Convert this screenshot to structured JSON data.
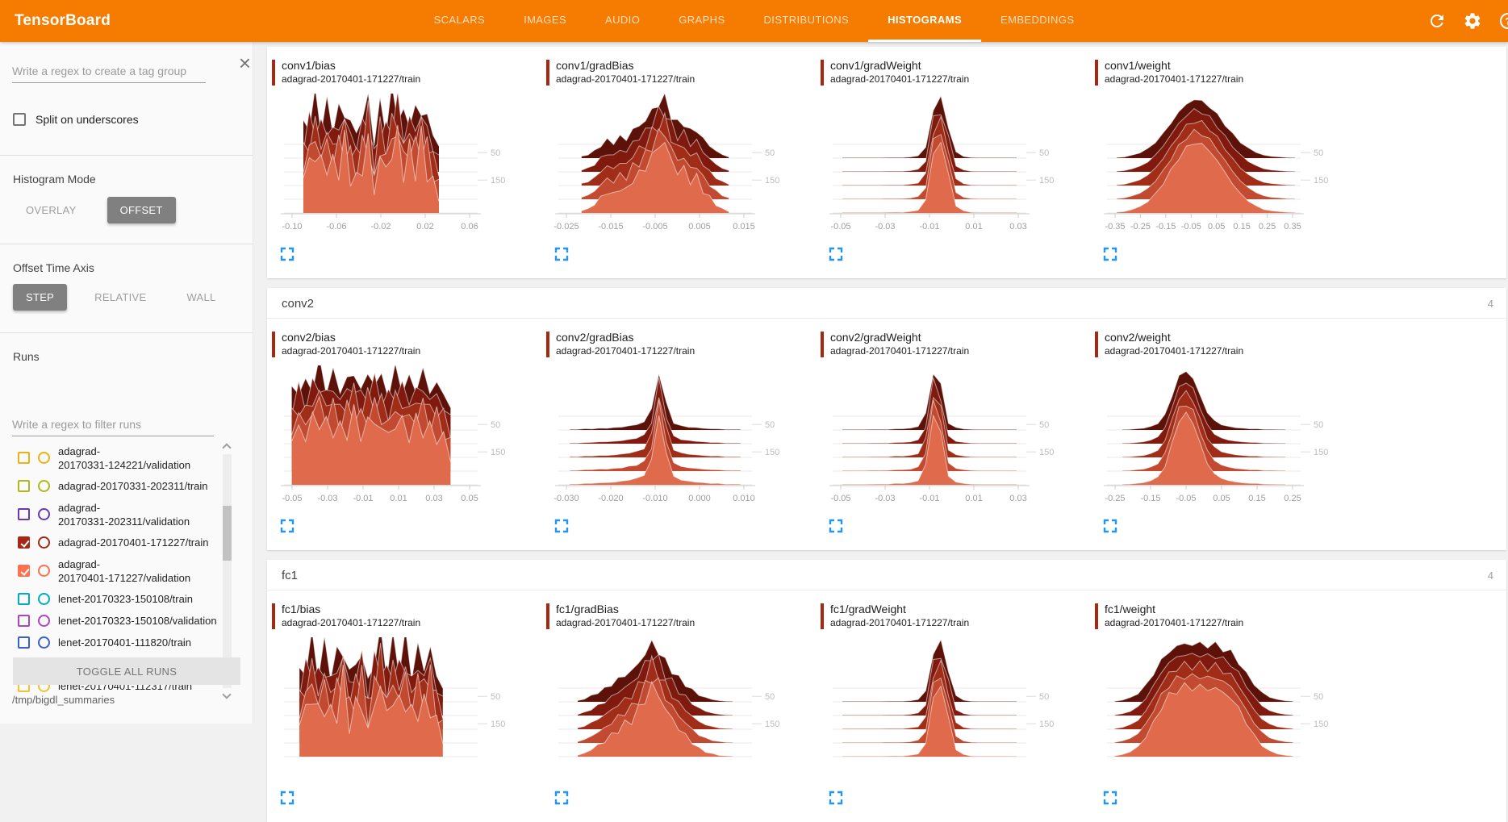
{
  "app": {
    "title": "TensorBoard",
    "accent_color": "#f57c00"
  },
  "nav": {
    "tabs": [
      {
        "label": "SCALARS",
        "active": false
      },
      {
        "label": "IMAGES",
        "active": false
      },
      {
        "label": "AUDIO",
        "active": false
      },
      {
        "label": "GRAPHS",
        "active": false
      },
      {
        "label": "DISTRIBUTIONS",
        "active": false
      },
      {
        "label": "HISTOGRAMS",
        "active": true
      },
      {
        "label": "EMBEDDINGS",
        "active": false
      }
    ]
  },
  "toolbar": {
    "icons": [
      "refresh-icon",
      "settings-icon",
      "help-icon"
    ]
  },
  "sidebar": {
    "tag_filter_placeholder": "Write a regex to create a tag group",
    "split_label": "Split on underscores",
    "histogram_mode_label": "Histogram Mode",
    "histogram_modes": [
      {
        "label": "OVERLAY",
        "selected": false
      },
      {
        "label": "OFFSET",
        "selected": true
      }
    ],
    "offset_axis_label": "Offset Time Axis",
    "offset_axis_modes": [
      {
        "label": "STEP",
        "selected": true
      },
      {
        "label": "RELATIVE",
        "selected": false
      },
      {
        "label": "WALL",
        "selected": false
      }
    ],
    "runs_label": "Runs",
    "runs_filter_placeholder": "Write a regex to filter runs",
    "runs": [
      {
        "label": "adagrad-20170331-124221/validation",
        "lines": [
          "adagrad-",
          "20170331-124221/validation"
        ],
        "color": "#edb211",
        "checked": false
      },
      {
        "label": "adagrad-20170331-202311/train",
        "color": "#aeb81c",
        "checked": false
      },
      {
        "label": "adagrad-20170331-202311/validation",
        "lines": [
          "adagrad-",
          "20170331-202311/validation"
        ],
        "color": "#6639b7",
        "checked": false
      },
      {
        "label": "adagrad-20170401-171227/train",
        "color": "#a52714",
        "checked": true
      },
      {
        "label": "adagrad-20170401-171227/validation",
        "lines": [
          "adagrad-",
          "20170401-171227/validation"
        ],
        "color": "#ff7050",
        "checked": true
      },
      {
        "label": "lenet-20170323-150108/train",
        "color": "#00acc1",
        "checked": false
      },
      {
        "label": "lenet-20170323-150108/validation",
        "color": "#ab47bc",
        "checked": false
      },
      {
        "label": "lenet-20170401-111820/train",
        "color": "#3b5fce",
        "checked": false
      },
      {
        "label": "lenet-20170401-111820/validation",
        "color": "#0b8043",
        "checked": false
      },
      {
        "label": "lenet-20170401-112317/train",
        "color": "#f1c232",
        "checked": false
      }
    ],
    "toggle_all_label": "TOGGLE ALL RUNS",
    "log_dir": "/tmp/bigdl_summaries"
  },
  "main": {
    "sections": [
      {
        "name": "",
        "count": "",
        "charts": [
          0,
          1,
          2,
          3
        ]
      },
      {
        "name": "conv2",
        "count": "4",
        "charts": [
          4,
          5,
          6,
          7
        ]
      },
      {
        "name": "fc1",
        "count": "4",
        "charts": [
          8,
          9,
          10,
          11
        ]
      }
    ]
  },
  "chart_meta": {
    "type": "ridgeline-histogram-offset",
    "layers": 5,
    "palette_front_to_back": [
      "#e06a4c",
      "#c24a30",
      "#a02d18",
      "#801a0e",
      "#5c1208"
    ],
    "top_stroke": "rgba(255,255,255,0.55)",
    "accent_color": "#a52714",
    "expand_icon_color": "#2196f3"
  },
  "chart_data": [
    {
      "title": "conv1/bias",
      "run": "adagrad-20170401-171227/train",
      "type": "ridgeline-histogram",
      "x_ticks": [
        "-0.10",
        "-0.06",
        "-0.02",
        "0.02",
        "0.06"
      ],
      "y_step_labels": [
        {
          "text": "50",
          "offset_steps": 4.4
        },
        {
          "text": "150",
          "offset_steps": 2.4
        }
      ],
      "span": [
        0.1,
        0.8
      ],
      "rough": 0.5,
      "axis": true,
      "profile": [
        0.5,
        0.72,
        0.88,
        0.66,
        0.78,
        0.62,
        0.74,
        0.86,
        0.58,
        0.44,
        0.7,
        0.96,
        0.28,
        0.8,
        0.6,
        0.92,
        1.0,
        0.62,
        0.78,
        0.72,
        0.9,
        0.68,
        0.4,
        0.22
      ]
    },
    {
      "title": "conv1/gradBias",
      "run": "adagrad-20170401-171227/train",
      "type": "ridgeline-histogram",
      "x_ticks": [
        "-0.025",
        "-0.015",
        "-0.005",
        "0.005",
        "0.015"
      ],
      "y_step_labels": [
        {
          "text": "50",
          "offset_steps": 4.4
        },
        {
          "text": "150",
          "offset_steps": 2.4
        }
      ],
      "span": [
        0.12,
        0.88
      ],
      "rough": 0.18,
      "axis": true,
      "profile": [
        0.03,
        0.06,
        0.12,
        0.22,
        0.3,
        0.26,
        0.36,
        0.32,
        0.48,
        0.55,
        0.65,
        0.8,
        0.95,
        1.0,
        0.75,
        0.58,
        0.62,
        0.45,
        0.5,
        0.32,
        0.22,
        0.12,
        0.06,
        0.02
      ]
    },
    {
      "title": "conv1/gradWeight",
      "run": "adagrad-20170401-171227/train",
      "type": "ridgeline-histogram",
      "x_ticks": [
        "-0.05",
        "-0.03",
        "-0.01",
        "0.01",
        "0.03"
      ],
      "y_step_labels": [
        {
          "text": "50",
          "offset_steps": 4.4
        },
        {
          "text": "150",
          "offset_steps": 2.4
        }
      ],
      "span": [
        0.05,
        0.95
      ],
      "rough": 0.1,
      "axis": true,
      "profile": [
        0,
        0,
        0,
        0,
        0,
        0,
        0.01,
        0.01,
        0.01,
        0.02,
        0.04,
        0.18,
        0.85,
        1.0,
        0.55,
        0.1,
        0.03,
        0.01,
        0,
        0,
        0,
        0,
        0,
        0
      ]
    },
    {
      "title": "conv1/weight",
      "run": "adagrad-20170401-171227/train",
      "type": "ridgeline-histogram",
      "x_ticks": [
        "-0.35",
        "-0.25",
        "-0.15",
        "-0.05",
        "0.05",
        "0.15",
        "0.25",
        "0.35"
      ],
      "y_step_labels": [
        {
          "text": "50",
          "offset_steps": 4.4
        },
        {
          "text": "150",
          "offset_steps": 2.4
        }
      ],
      "span": [
        0.05,
        0.97
      ],
      "rough": 0.05,
      "axis": true,
      "profile": [
        0.01,
        0.02,
        0.05,
        0.09,
        0.16,
        0.27,
        0.42,
        0.6,
        0.78,
        0.92,
        1.0,
        0.97,
        0.88,
        0.74,
        0.57,
        0.41,
        0.27,
        0.17,
        0.1,
        0.05,
        0.03,
        0.02,
        0.01,
        0
      ]
    },
    {
      "title": "conv2/bias",
      "run": "adagrad-20170401-171227/train",
      "type": "ridgeline-histogram",
      "x_ticks": [
        "-0.05",
        "-0.03",
        "-0.01",
        "0.01",
        "0.03",
        "0.05"
      ],
      "y_step_labels": [
        {
          "text": "50",
          "offset_steps": 4.4
        },
        {
          "text": "150",
          "offset_steps": 2.4
        }
      ],
      "span": [
        0.04,
        0.86
      ],
      "rough": 0.35,
      "axis": true,
      "profile": [
        0.62,
        0.8,
        0.7,
        0.88,
        1.0,
        0.78,
        0.9,
        0.72,
        0.84,
        0.94,
        0.74,
        0.86,
        0.92,
        0.8,
        0.7,
        0.9,
        0.84,
        0.76,
        0.82,
        0.9,
        0.72,
        0.76,
        0.62,
        0.4
      ]
    },
    {
      "title": "conv2/gradBias",
      "run": "adagrad-20170401-171227/train",
      "type": "ridgeline-histogram",
      "x_ticks": [
        "-0.030",
        "-0.020",
        "-0.010",
        "0.000",
        "0.010"
      ],
      "y_step_labels": [
        {
          "text": "50",
          "offset_steps": 4.4
        },
        {
          "text": "150",
          "offset_steps": 2.4
        }
      ],
      "span": [
        0.06,
        0.94
      ],
      "rough": 0.1,
      "axis": true,
      "profile": [
        0.01,
        0.01,
        0.02,
        0.02,
        0.03,
        0.03,
        0.04,
        0.05,
        0.07,
        0.09,
        0.14,
        0.35,
        1.0,
        0.45,
        0.12,
        0.07,
        0.05,
        0.04,
        0.03,
        0.02,
        0.02,
        0.01,
        0.01,
        0.01
      ]
    },
    {
      "title": "conv2/gradWeight",
      "run": "adagrad-20170401-171227/train",
      "type": "ridgeline-histogram",
      "x_ticks": [
        "-0.05",
        "-0.03",
        "-0.01",
        "0.01",
        "0.03"
      ],
      "y_step_labels": [
        {
          "text": "50",
          "offset_steps": 4.4
        },
        {
          "text": "150",
          "offset_steps": 2.4
        }
      ],
      "span": [
        0.05,
        0.95
      ],
      "rough": 0.1,
      "axis": true,
      "profile": [
        0,
        0,
        0,
        0,
        0.01,
        0.01,
        0.01,
        0.02,
        0.02,
        0.03,
        0.06,
        0.28,
        1.0,
        0.75,
        0.12,
        0.04,
        0.02,
        0.01,
        0,
        0,
        0,
        0,
        0,
        0
      ]
    },
    {
      "title": "conv2/weight",
      "run": "adagrad-20170401-171227/train",
      "type": "ridgeline-histogram",
      "x_ticks": [
        "-0.25",
        "-0.15",
        "-0.05",
        "0.05",
        "0.15",
        "0.25"
      ],
      "y_step_labels": [
        {
          "text": "50",
          "offset_steps": 4.4
        },
        {
          "text": "150",
          "offset_steps": 2.4
        }
      ],
      "span": [
        0.08,
        0.92
      ],
      "rough": 0.05,
      "axis": true,
      "profile": [
        0,
        0.01,
        0.02,
        0.03,
        0.06,
        0.11,
        0.26,
        0.58,
        0.92,
        1.0,
        0.88,
        0.58,
        0.3,
        0.16,
        0.09,
        0.06,
        0.04,
        0.03,
        0.02,
        0.02,
        0.01,
        0.01,
        0,
        0
      ]
    },
    {
      "title": "fc1/bias",
      "run": "adagrad-20170401-171227/train",
      "type": "ridgeline-histogram",
      "x_ticks": [],
      "y_step_labels": [
        {
          "text": "50",
          "offset_steps": 4.4
        },
        {
          "text": "150",
          "offset_steps": 2.4
        }
      ],
      "span": [
        0.08,
        0.82
      ],
      "rough": 0.5,
      "axis": false,
      "profile": [
        0.45,
        0.68,
        0.9,
        0.6,
        0.82,
        0.55,
        0.75,
        0.95,
        0.5,
        0.65,
        0.85,
        0.35,
        0.78,
        1.0,
        0.6,
        0.88,
        0.7,
        0.92,
        0.55,
        0.8,
        0.65,
        0.85,
        0.45,
        0.25
      ]
    },
    {
      "title": "fc1/gradBias",
      "run": "adagrad-20170401-171227/train",
      "type": "ridgeline-histogram",
      "x_ticks": [],
      "y_step_labels": [
        {
          "text": "50",
          "offset_steps": 4.4
        },
        {
          "text": "150",
          "offset_steps": 2.4
        }
      ],
      "span": [
        0.1,
        0.9
      ],
      "rough": 0.18,
      "axis": false,
      "profile": [
        0.02,
        0.05,
        0.1,
        0.16,
        0.22,
        0.3,
        0.38,
        0.46,
        0.52,
        0.66,
        0.82,
        1.0,
        0.88,
        0.68,
        0.54,
        0.4,
        0.3,
        0.2,
        0.12,
        0.07,
        0.04,
        0.02,
        0.01,
        0
      ]
    },
    {
      "title": "fc1/gradWeight",
      "run": "adagrad-20170401-171227/train",
      "type": "ridgeline-histogram",
      "x_ticks": [],
      "y_step_labels": [
        {
          "text": "50",
          "offset_steps": 4.4
        },
        {
          "text": "150",
          "offset_steps": 2.4
        }
      ],
      "span": [
        0.05,
        0.95
      ],
      "rough": 0.1,
      "axis": false,
      "profile": [
        0,
        0,
        0,
        0,
        0,
        0,
        0.01,
        0.01,
        0.01,
        0.02,
        0.04,
        0.18,
        0.85,
        1.0,
        0.55,
        0.1,
        0.03,
        0.01,
        0,
        0,
        0,
        0,
        0,
        0
      ]
    },
    {
      "title": "fc1/weight",
      "run": "adagrad-20170401-171227/train",
      "type": "ridgeline-histogram",
      "x_ticks": [],
      "y_step_labels": [
        {
          "text": "50",
          "offset_steps": 4.4
        },
        {
          "text": "150",
          "offset_steps": 2.4
        }
      ],
      "span": [
        0.04,
        0.96
      ],
      "rough": 0.08,
      "axis": false,
      "profile": [
        0.01,
        0.03,
        0.07,
        0.14,
        0.28,
        0.48,
        0.7,
        0.86,
        0.94,
        1.0,
        0.97,
        1.0,
        0.95,
        0.98,
        0.9,
        0.84,
        0.68,
        0.48,
        0.3,
        0.16,
        0.08,
        0.04,
        0.02,
        0.01
      ]
    }
  ]
}
